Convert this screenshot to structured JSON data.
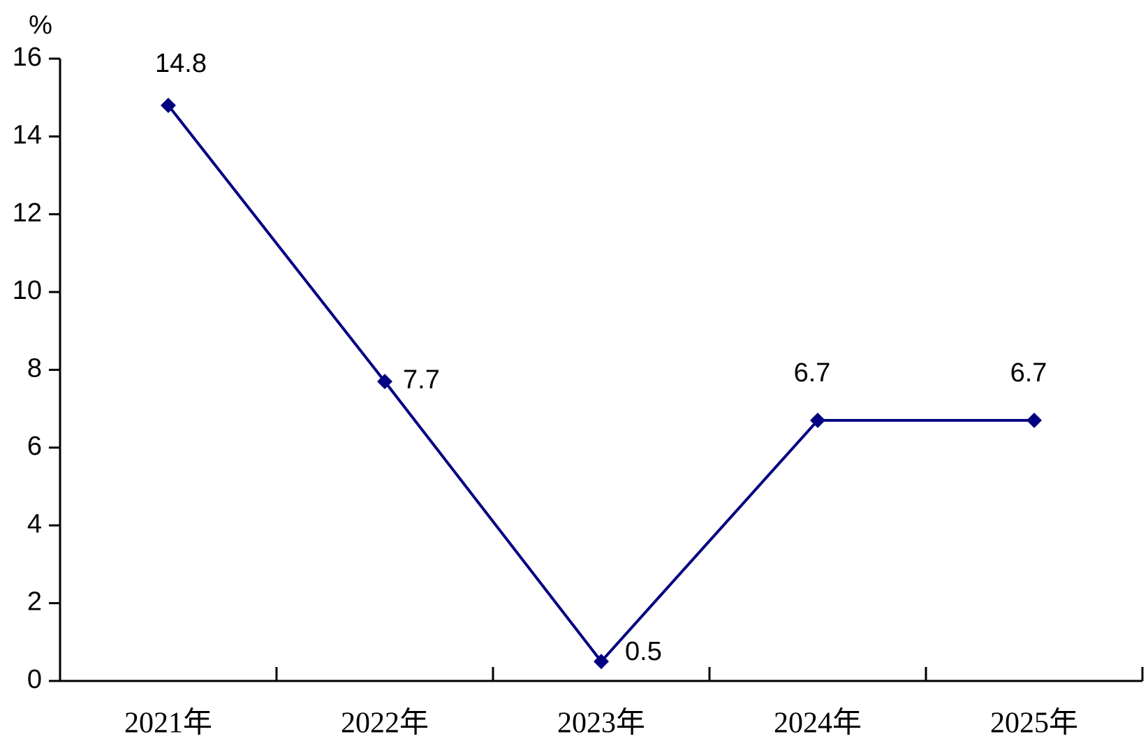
{
  "chart_data": {
    "type": "line",
    "y_label": "%",
    "categories": [
      "2021年",
      "2022年",
      "2023年",
      "2024年",
      "2025年"
    ],
    "series": [
      {
        "color": "#000080",
        "values": [
          14.8,
          7.7,
          0.5,
          6.7,
          6.7
        ]
      }
    ],
    "ylim": [
      0,
      16
    ],
    "yticks": [
      0,
      2,
      4,
      6,
      8,
      10,
      12,
      14,
      16
    ]
  }
}
